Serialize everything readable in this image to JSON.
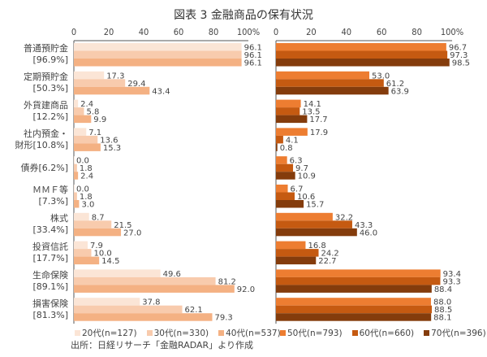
{
  "title": "図表 3 金融商品の保有状況",
  "source": "出所：日経リサーチ「金融RADAR」より作成",
  "chart_data": {
    "type": "bar",
    "orientation": "horizontal",
    "xlim": [
      0,
      100
    ],
    "ticks": [
      "0",
      "20",
      "40",
      "60",
      "80",
      "100%"
    ],
    "categories": [
      {
        "line1": "普通預貯金",
        "line2": "[96.9%]"
      },
      {
        "line1": "定期預貯金",
        "line2": "[50.3%]"
      },
      {
        "line1": "外貨建商品",
        "line2": "[12.2%]"
      },
      {
        "line1": "社内預金・",
        "line2": "財形[10.8%]"
      },
      {
        "line1": "債券[6.2%]",
        "line2": ""
      },
      {
        "line1": "ＭＭＦ等",
        "line2": "[7.3%]"
      },
      {
        "line1": "株式",
        "line2": "[33.4%]"
      },
      {
        "line1": "投資信託",
        "line2": "[17.7%]"
      },
      {
        "line1": "生命保険",
        "line2": "[89.1%]"
      },
      {
        "line1": "損害保険",
        "line2": "[81.3%]"
      }
    ],
    "panels": [
      {
        "series": [
          {
            "name": "20代(n=127)",
            "color": "#fbe5d6",
            "values": [
              96.1,
              17.3,
              2.4,
              7.1,
              0.0,
              0.0,
              8.7,
              7.9,
              49.6,
              37.8
            ]
          },
          {
            "name": "30代(n=330)",
            "color": "#f8cbad",
            "values": [
              96.1,
              29.4,
              5.8,
              13.6,
              1.8,
              1.8,
              21.5,
              10.0,
              81.2,
              62.1
            ]
          },
          {
            "name": "40代(n=537)",
            "color": "#f4b183",
            "values": [
              96.1,
              43.4,
              9.9,
              15.3,
              2.4,
              3.0,
              27.0,
              14.5,
              92.0,
              79.3
            ]
          }
        ]
      },
      {
        "series": [
          {
            "name": "50代(n=793)",
            "color": "#ed7d31",
            "values": [
              96.7,
              53.0,
              14.1,
              17.9,
              6.3,
              6.7,
              32.2,
              16.8,
              93.4,
              88.0
            ]
          },
          {
            "name": "60代(n=660)",
            "color": "#c55a11",
            "values": [
              97.3,
              61.2,
              13.5,
              4.1,
              9.7,
              10.6,
              43.3,
              24.2,
              93.3,
              88.5
            ]
          },
          {
            "name": "70代(n=396)",
            "color": "#843c0c",
            "values": [
              98.5,
              63.9,
              17.7,
              0.8,
              10.9,
              15.7,
              46.0,
              22.7,
              88.4,
              88.1
            ]
          }
        ]
      }
    ],
    "grid": false,
    "legend": "bottom"
  }
}
